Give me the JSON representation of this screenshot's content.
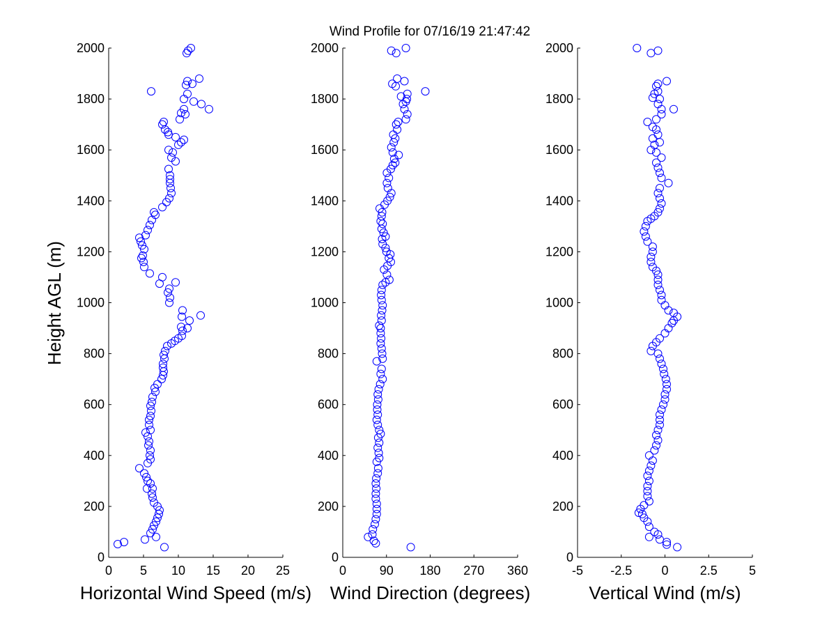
{
  "title": "Wind Profile for  07/16/19 21:47:42",
  "ylabel": "Height AGL (m)",
  "chart_data": [
    {
      "type": "scatter",
      "marker": "open-circle",
      "color": "#0000ff",
      "xlabel": "Horizontal Wind Speed (m/s)",
      "xlim": [
        0,
        25
      ],
      "ylim": [
        0,
        2000
      ],
      "xticks": [
        "0",
        "5",
        "10",
        "15",
        "20",
        "25"
      ],
      "yticks": [
        "0",
        "200",
        "400",
        "600",
        "800",
        "1000",
        "1200",
        "1400",
        "1600",
        "1800",
        "2000"
      ],
      "points": [
        [
          8,
          40
        ],
        [
          1.3,
          52
        ],
        [
          2.2,
          60
        ],
        [
          5.2,
          70
        ],
        [
          6.8,
          80
        ],
        [
          6,
          95
        ],
        [
          6.3,
          110
        ],
        [
          6.5,
          125
        ],
        [
          6.8,
          140
        ],
        [
          7,
          155
        ],
        [
          7.2,
          170
        ],
        [
          7.3,
          185
        ],
        [
          7,
          200
        ],
        [
          6.5,
          215
        ],
        [
          6.3,
          235
        ],
        [
          6.2,
          250
        ],
        [
          6.3,
          270
        ],
        [
          5.5,
          270
        ],
        [
          6,
          290
        ],
        [
          5.6,
          300
        ],
        [
          5.4,
          315
        ],
        [
          5.1,
          330
        ],
        [
          4.4,
          350
        ],
        [
          5.6,
          370
        ],
        [
          6,
          385
        ],
        [
          5.9,
          400
        ],
        [
          6,
          420
        ],
        [
          5.7,
          440
        ],
        [
          5.8,
          455
        ],
        [
          5.6,
          475
        ],
        [
          5.3,
          490
        ],
        [
          6,
          500
        ],
        [
          5.8,
          520
        ],
        [
          5.8,
          540
        ],
        [
          6,
          555
        ],
        [
          6.1,
          575
        ],
        [
          6,
          595
        ],
        [
          6.2,
          610
        ],
        [
          6.3,
          630
        ],
        [
          6.7,
          650
        ],
        [
          6.6,
          665
        ],
        [
          7,
          680
        ],
        [
          7.6,
          700
        ],
        [
          7.8,
          715
        ],
        [
          7.9,
          730
        ],
        [
          7.8,
          745
        ],
        [
          7.8,
          760
        ],
        [
          8,
          780
        ],
        [
          7.9,
          795
        ],
        [
          8.1,
          810
        ],
        [
          8.4,
          830
        ],
        [
          9,
          840
        ],
        [
          9.5,
          850
        ],
        [
          10,
          860
        ],
        [
          10.5,
          870
        ],
        [
          10.6,
          890
        ],
        [
          11.3,
          900
        ],
        [
          10.4,
          905
        ],
        [
          11.6,
          930
        ],
        [
          10.5,
          945
        ],
        [
          13.2,
          950
        ],
        [
          10.6,
          970
        ],
        [
          8.7,
          1000
        ],
        [
          8.8,
          1020
        ],
        [
          8.5,
          1040
        ],
        [
          8.7,
          1055
        ],
        [
          9.6,
          1080
        ],
        [
          7.3,
          1075
        ],
        [
          7.7,
          1100
        ],
        [
          5.9,
          1115
        ],
        [
          5.1,
          1140
        ],
        [
          5,
          1160
        ],
        [
          4.7,
          1175
        ],
        [
          4.9,
          1185
        ],
        [
          5.1,
          1210
        ],
        [
          4.8,
          1225
        ],
        [
          4.6,
          1240
        ],
        [
          4.4,
          1255
        ],
        [
          5.3,
          1265
        ],
        [
          5.6,
          1285
        ],
        [
          5.9,
          1305
        ],
        [
          6.2,
          1325
        ],
        [
          6.7,
          1345
        ],
        [
          6.5,
          1355
        ],
        [
          7.7,
          1375
        ],
        [
          8.3,
          1395
        ],
        [
          8.7,
          1410
        ],
        [
          9,
          1430
        ],
        [
          8.9,
          1450
        ],
        [
          8.8,
          1470
        ],
        [
          8.8,
          1485
        ],
        [
          8.8,
          1500
        ],
        [
          8.6,
          1525
        ],
        [
          9.6,
          1555
        ],
        [
          9,
          1570
        ],
        [
          9.2,
          1590
        ],
        [
          8.6,
          1600
        ],
        [
          10,
          1620
        ],
        [
          10.4,
          1630
        ],
        [
          10.8,
          1640
        ],
        [
          9.6,
          1650
        ],
        [
          8.6,
          1660
        ],
        [
          8.5,
          1670
        ],
        [
          8.1,
          1680
        ],
        [
          7.7,
          1700
        ],
        [
          7.9,
          1710
        ],
        [
          10.2,
          1720
        ],
        [
          11,
          1740
        ],
        [
          10.4,
          1745
        ],
        [
          10.8,
          1760
        ],
        [
          14.4,
          1760
        ],
        [
          13.3,
          1780
        ],
        [
          12.2,
          1790
        ],
        [
          10.8,
          1800
        ],
        [
          11.3,
          1820
        ],
        [
          6.1,
          1830
        ],
        [
          12,
          1860
        ],
        [
          11.3,
          1870
        ],
        [
          11.1,
          1855
        ],
        [
          13,
          1880
        ],
        [
          11.2,
          1980
        ],
        [
          11.4,
          1990
        ],
        [
          11.8,
          2000
        ]
      ]
    },
    {
      "type": "scatter",
      "marker": "open-circle",
      "color": "#0000ff",
      "xlabel": "Wind Direction (degrees)",
      "xlim": [
        0,
        360
      ],
      "ylim": [
        0,
        2000
      ],
      "xticks": [
        "0",
        "90",
        "180",
        "270",
        "360"
      ],
      "yticks": [
        "0",
        "200",
        "400",
        "600",
        "800",
        "1000",
        "1200",
        "1400",
        "1600",
        "1800",
        "2000"
      ],
      "points": [
        [
          140,
          40
        ],
        [
          68,
          55
        ],
        [
          64,
          65
        ],
        [
          52,
          80
        ],
        [
          61,
          90
        ],
        [
          62,
          110
        ],
        [
          66,
          130
        ],
        [
          68,
          150
        ],
        [
          70,
          170
        ],
        [
          70,
          190
        ],
        [
          70,
          210
        ],
        [
          68,
          230
        ],
        [
          68,
          250
        ],
        [
          69,
          270
        ],
        [
          68,
          290
        ],
        [
          69,
          310
        ],
        [
          72,
          330
        ],
        [
          73,
          350
        ],
        [
          70,
          375
        ],
        [
          75,
          390
        ],
        [
          74,
          410
        ],
        [
          72,
          430
        ],
        [
          75,
          450
        ],
        [
          73,
          470
        ],
        [
          78,
          485
        ],
        [
          75,
          500
        ],
        [
          72,
          520
        ],
        [
          70,
          540
        ],
        [
          72,
          560
        ],
        [
          71,
          580
        ],
        [
          71,
          600
        ],
        [
          73,
          620
        ],
        [
          72,
          640
        ],
        [
          74,
          660
        ],
        [
          77,
          680
        ],
        [
          82,
          700
        ],
        [
          78,
          720
        ],
        [
          80,
          740
        ],
        [
          70,
          770
        ],
        [
          82,
          780
        ],
        [
          81,
          800
        ],
        [
          80,
          820
        ],
        [
          78,
          840
        ],
        [
          79,
          860
        ],
        [
          78,
          880
        ],
        [
          78,
          900
        ],
        [
          75,
          910
        ],
        [
          80,
          930
        ],
        [
          79,
          950
        ],
        [
          81,
          970
        ],
        [
          82,
          990
        ],
        [
          80,
          1010
        ],
        [
          79,
          1030
        ],
        [
          80,
          1050
        ],
        [
          82,
          1070
        ],
        [
          88,
          1080
        ],
        [
          96,
          1090
        ],
        [
          91,
          1110
        ],
        [
          85,
          1130
        ],
        [
          92,
          1145
        ],
        [
          99,
          1160
        ],
        [
          95,
          1175
        ],
        [
          98,
          1190
        ],
        [
          90,
          1200
        ],
        [
          88,
          1215
        ],
        [
          82,
          1230
        ],
        [
          81,
          1250
        ],
        [
          88,
          1260
        ],
        [
          84,
          1275
        ],
        [
          80,
          1290
        ],
        [
          82,
          1310
        ],
        [
          78,
          1320
        ],
        [
          80,
          1340
        ],
        [
          81,
          1355
        ],
        [
          76,
          1370
        ],
        [
          86,
          1385
        ],
        [
          92,
          1400
        ],
        [
          97,
          1415
        ],
        [
          100,
          1430
        ],
        [
          93,
          1450
        ],
        [
          91,
          1470
        ],
        [
          95,
          1490
        ],
        [
          91,
          1510
        ],
        [
          99,
          1525
        ],
        [
          103,
          1540
        ],
        [
          108,
          1550
        ],
        [
          106,
          1565
        ],
        [
          115,
          1580
        ],
        [
          103,
          1590
        ],
        [
          100,
          1610
        ],
        [
          105,
          1630
        ],
        [
          108,
          1645
        ],
        [
          104,
          1660
        ],
        [
          112,
          1680
        ],
        [
          110,
          1700
        ],
        [
          114,
          1710
        ],
        [
          130,
          1720
        ],
        [
          133,
          1740
        ],
        [
          127,
          1760
        ],
        [
          124,
          1780
        ],
        [
          130,
          1790
        ],
        [
          132,
          1800
        ],
        [
          120,
          1810
        ],
        [
          133,
          1820
        ],
        [
          170,
          1830
        ],
        [
          102,
          1860
        ],
        [
          109,
          1850
        ],
        [
          112,
          1880
        ],
        [
          127,
          1870
        ],
        [
          110,
          1980
        ],
        [
          100,
          1990
        ],
        [
          130,
          2000
        ]
      ]
    },
    {
      "type": "scatter",
      "marker": "open-circle",
      "color": "#0000ff",
      "xlabel": "Vertical Wind (m/s)",
      "xlim": [
        -5,
        5
      ],
      "ylim": [
        0,
        2000
      ],
      "xticks": [
        "-5",
        "-2.5",
        "0",
        "2.5",
        "5"
      ],
      "yticks": [
        "0",
        "200",
        "400",
        "600",
        "800",
        "1000",
        "1200",
        "1400",
        "1600",
        "1800",
        "2000"
      ],
      "points": [
        [
          0.7,
          40
        ],
        [
          0.1,
          50
        ],
        [
          0.1,
          60
        ],
        [
          -0.3,
          70
        ],
        [
          -0.4,
          90
        ],
        [
          -0.9,
          80
        ],
        [
          -0.6,
          100
        ],
        [
          -0.9,
          120
        ],
        [
          -1,
          140
        ],
        [
          -1.2,
          155
        ],
        [
          -1.3,
          170
        ],
        [
          -1.5,
          175
        ],
        [
          -1.4,
          190
        ],
        [
          -1.2,
          205
        ],
        [
          -0.9,
          220
        ],
        [
          -1,
          240
        ],
        [
          -1,
          260
        ],
        [
          -1,
          280
        ],
        [
          -0.9,
          300
        ],
        [
          -1,
          320
        ],
        [
          -0.9,
          340
        ],
        [
          -0.8,
          360
        ],
        [
          -0.7,
          380
        ],
        [
          -0.9,
          400
        ],
        [
          -0.6,
          420
        ],
        [
          -0.5,
          440
        ],
        [
          -0.4,
          460
        ],
        [
          -0.5,
          480
        ],
        [
          -0.4,
          500
        ],
        [
          -0.3,
          520
        ],
        [
          -0.3,
          540
        ],
        [
          -0.3,
          560
        ],
        [
          -0.2,
          580
        ],
        [
          -0.1,
          600
        ],
        [
          0,
          620
        ],
        [
          0,
          640
        ],
        [
          0.1,
          660
        ],
        [
          0.1,
          680
        ],
        [
          0.05,
          700
        ],
        [
          -0.05,
          720
        ],
        [
          -0.1,
          740
        ],
        [
          -0.2,
          760
        ],
        [
          -0.3,
          780
        ],
        [
          -0.4,
          800
        ],
        [
          -0.8,
          810
        ],
        [
          -0.7,
          830
        ],
        [
          -0.5,
          845
        ],
        [
          -0.3,
          860
        ],
        [
          0,
          880
        ],
        [
          0.2,
          900
        ],
        [
          0.4,
          920
        ],
        [
          0.5,
          930
        ],
        [
          0.7,
          945
        ],
        [
          0.5,
          960
        ],
        [
          0.2,
          970
        ],
        [
          0,
          990
        ],
        [
          -0.2,
          1010
        ],
        [
          -0.2,
          1030
        ],
        [
          -0.3,
          1050
        ],
        [
          -0.4,
          1070
        ],
        [
          -0.4,
          1090
        ],
        [
          -0.4,
          1110
        ],
        [
          -0.5,
          1125
        ],
        [
          -0.7,
          1140
        ],
        [
          -0.8,
          1160
        ],
        [
          -0.8,
          1180
        ],
        [
          -0.7,
          1200
        ],
        [
          -0.7,
          1220
        ],
        [
          -1,
          1240
        ],
        [
          -1.1,
          1260
        ],
        [
          -1.2,
          1280
        ],
        [
          -1.1,
          1300
        ],
        [
          -1,
          1320
        ],
        [
          -0.8,
          1330
        ],
        [
          -0.6,
          1340
        ],
        [
          -0.4,
          1355
        ],
        [
          -0.3,
          1370
        ],
        [
          -0.2,
          1390
        ],
        [
          -0.3,
          1410
        ],
        [
          -0.4,
          1430
        ],
        [
          -0.3,
          1450
        ],
        [
          0.2,
          1470
        ],
        [
          -0.2,
          1490
        ],
        [
          -0.3,
          1510
        ],
        [
          -0.4,
          1530
        ],
        [
          -0.5,
          1550
        ],
        [
          -0.2,
          1570
        ],
        [
          -0.5,
          1590
        ],
        [
          -0.8,
          1600
        ],
        [
          -0.6,
          1620
        ],
        [
          -0.3,
          1630
        ],
        [
          -0.7,
          1645
        ],
        [
          -0.4,
          1660
        ],
        [
          -0.5,
          1680
        ],
        [
          -0.7,
          1690
        ],
        [
          -1,
          1710
        ],
        [
          -0.5,
          1720
        ],
        [
          -0.2,
          1740
        ],
        [
          0.5,
          1760
        ],
        [
          -0.2,
          1760
        ],
        [
          -0.4,
          1780
        ],
        [
          -0.3,
          1800
        ],
        [
          -0.7,
          1805
        ],
        [
          -0.6,
          1820
        ],
        [
          -0.4,
          1830
        ],
        [
          -0.5,
          1850
        ],
        [
          -0.4,
          1860
        ],
        [
          0.1,
          1870
        ],
        [
          -0.8,
          1980
        ],
        [
          -0.4,
          1990
        ],
        [
          -1.6,
          2000
        ]
      ]
    }
  ]
}
